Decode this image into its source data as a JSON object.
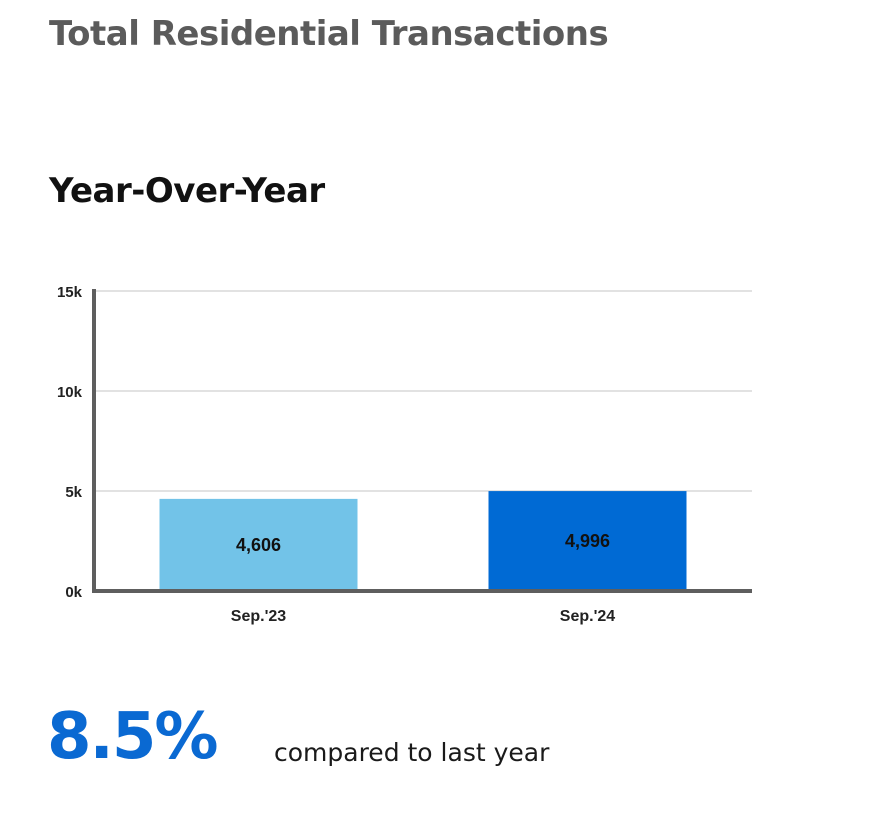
{
  "page": {
    "title": "Total Residential Transactions",
    "section_title": "Year-Over-Year"
  },
  "chart_data": {
    "type": "bar",
    "categories": [
      "Sep.'23",
      "Sep.'24"
    ],
    "values": [
      4606,
      4996
    ],
    "data_labels": [
      "4,606",
      "4,996"
    ],
    "bar_colors": [
      "#72c3e8",
      "#006ad4"
    ],
    "ylim": [
      0,
      15000
    ],
    "yticks": [
      0,
      5000,
      10000,
      15000
    ],
    "ytick_labels": [
      "0k",
      "5k",
      "10k",
      "15k"
    ],
    "grid": true,
    "title": "",
    "xlabel": "",
    "ylabel": ""
  },
  "summary": {
    "change_value": "8.5%",
    "change_caption": "compared to last year",
    "accent_color": "#0a69d2"
  }
}
